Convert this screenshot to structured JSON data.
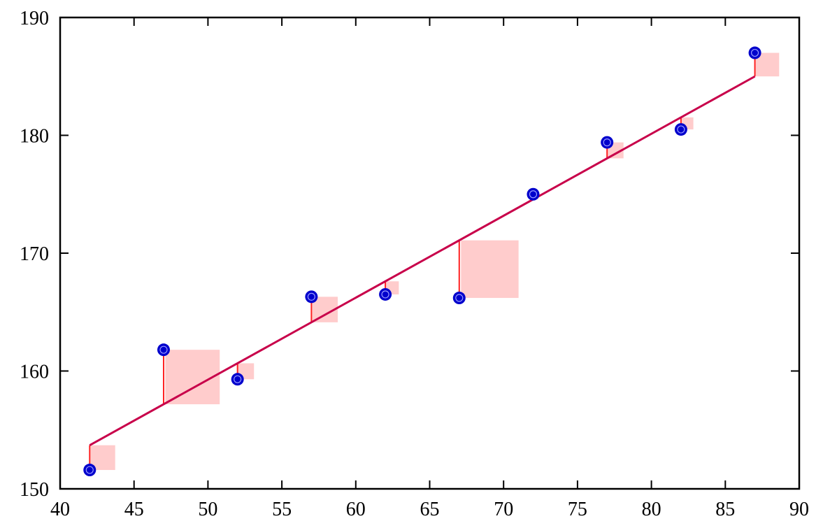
{
  "chart_data": {
    "type": "scatter",
    "title": "",
    "xlabel": "",
    "ylabel": "",
    "xlim": [
      40,
      90
    ],
    "ylim": [
      150,
      190
    ],
    "x_ticks": [
      "40",
      "45",
      "50",
      "55",
      "60",
      "65",
      "70",
      "75",
      "80",
      "85",
      "90"
    ],
    "y_ticks": [
      "150",
      "160",
      "170",
      "180",
      "190"
    ],
    "grid": false,
    "series": [
      {
        "type": "scatter",
        "x": [
          42,
          47,
          52,
          57,
          62,
          67,
          72,
          77,
          82,
          87
        ],
        "y": [
          151.6,
          161.8,
          159.3,
          166.3,
          166.5,
          166.2,
          175.0,
          179.4,
          180.5,
          187.0
        ]
      },
      {
        "type": "line",
        "x": [
          42,
          87
        ],
        "y": [
          153.7,
          185.0
        ]
      }
    ],
    "colors": {
      "points": "#0000cc",
      "point_ring": "#9999ff",
      "fit_line": "#c8004a",
      "residual_line": "#ff2222",
      "residual_square": "#ffcccc"
    }
  }
}
